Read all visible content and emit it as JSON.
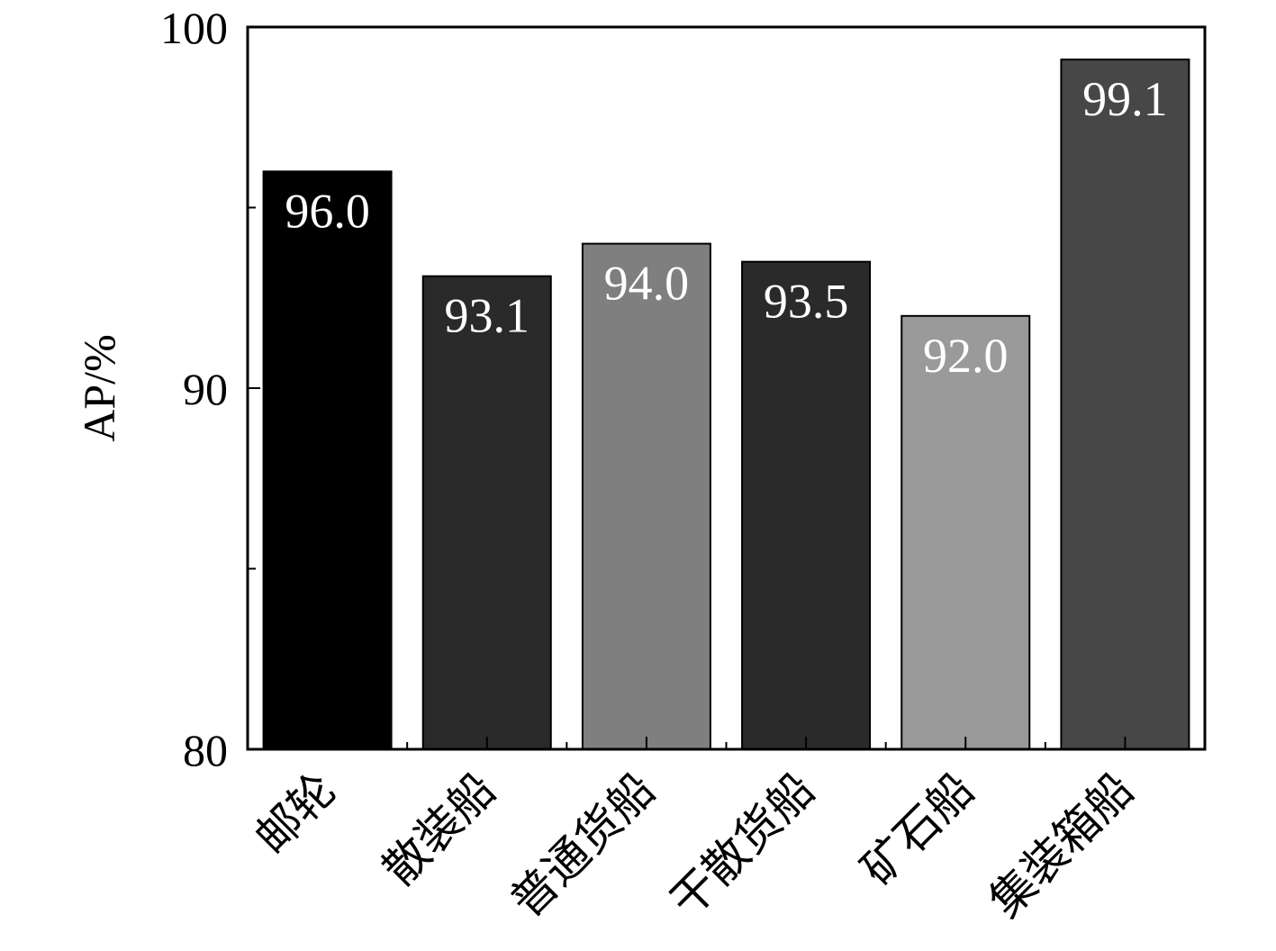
{
  "chart_data": {
    "type": "bar",
    "categories": [
      "邮轮",
      "散装船",
      "普通货船",
      "干散货船",
      "矿石船",
      "集装箱船"
    ],
    "values": [
      96.0,
      93.1,
      94.0,
      93.5,
      92.0,
      99.1
    ],
    "value_labels": [
      "96.0",
      "93.1",
      "94.0",
      "93.5",
      "92.0",
      "99.1"
    ],
    "bar_colors": [
      "#000000",
      "#2a2a2a",
      "#7f7f7f",
      "#2a2a2a",
      "#9a9a9a",
      "#474747"
    ],
    "title": "",
    "xlabel": "",
    "ylabel": "AP/%",
    "ylim": [
      80,
      100
    ],
    "yticks": [
      80,
      85,
      90,
      95,
      100
    ],
    "ytick_labels": [
      "80",
      "",
      "90",
      "",
      "100"
    ],
    "grid": false,
    "legend": "none"
  }
}
